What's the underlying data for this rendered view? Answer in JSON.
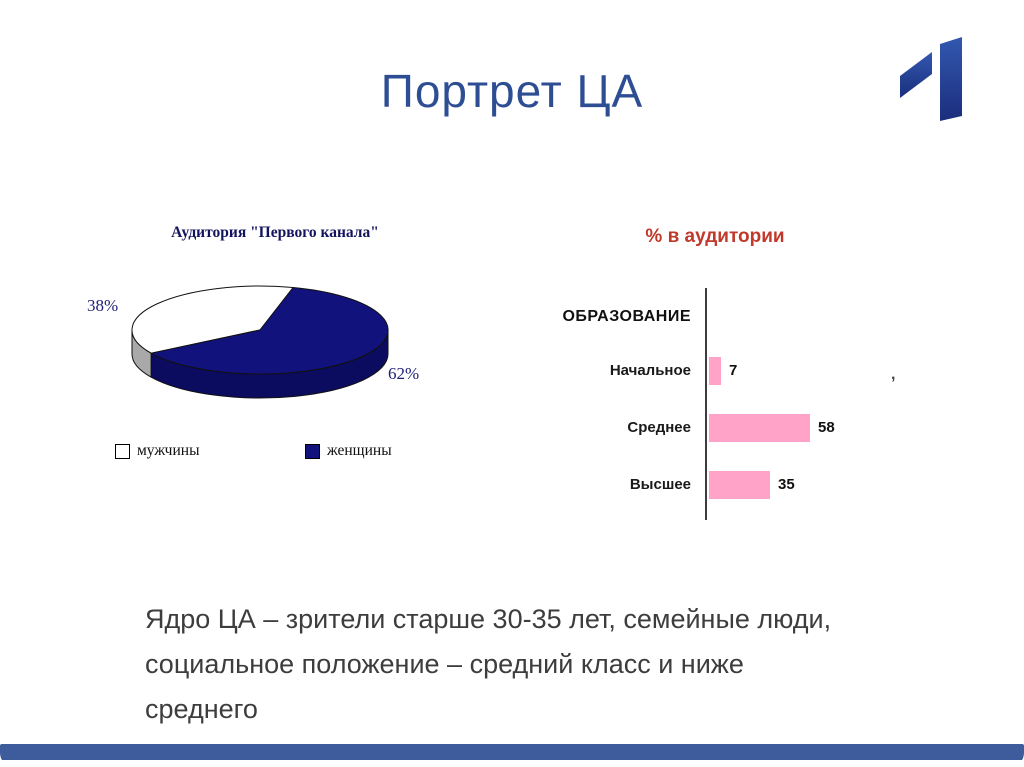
{
  "slide": {
    "title": "Портрет ЦА",
    "body_lines": [
      "Ядро ЦА – зрители старше 30-35 лет, семейные люди,",
      "социальное положение – средний класс и ниже",
      "среднего"
    ]
  },
  "colors": {
    "slide_background": "#FFFFFF",
    "title": "#2E4E94",
    "body_text": "#3D3D3D",
    "footer_bar": "#3E5C9C",
    "logo_blue": "#27418D"
  },
  "chart_data": [
    {
      "type": "pie",
      "style": "3d",
      "title": "Аудитория \"Первого канала\"",
      "labels": [
        "мужчины",
        "женщины"
      ],
      "values": [
        38,
        62
      ],
      "value_labels": [
        "38%",
        "62%"
      ],
      "colors": [
        "#FFFFFF",
        "#12127C"
      ],
      "side_colors": [
        "#A9A9A9",
        "#0B0B60"
      ],
      "legend_position": "bottom"
    },
    {
      "type": "bar",
      "orientation": "horizontal",
      "title": "% в аудитории",
      "title_color": "#C0392B",
      "group_label": "ОБРАЗОВАНИЕ",
      "categories": [
        "Начальное",
        "Среднее",
        "Высшее"
      ],
      "values": [
        7,
        58,
        35
      ],
      "xlim": [
        0,
        60
      ],
      "bar_color": "#FFA3C9",
      "grid": false,
      "stray_mark": ","
    }
  ]
}
